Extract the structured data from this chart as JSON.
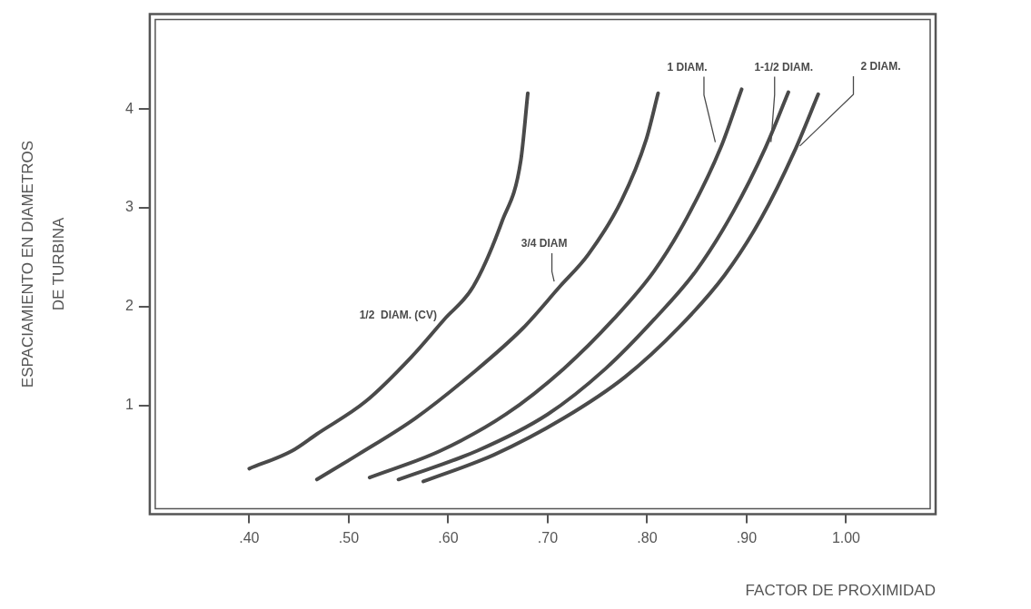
{
  "chart_data": {
    "type": "line",
    "xlabel": "FACTOR DE PROXIMIDAD",
    "ylabel": "ESPACIAMIENTO EN DIAMETROS\nDE TURBINA",
    "xlim": [
      0.3,
      1.09
    ],
    "ylim": [
      -0.1,
      4.96
    ],
    "xticks": [
      {
        "value": 0.4,
        "label": ".40"
      },
      {
        "value": 0.5,
        "label": ".50"
      },
      {
        "value": 0.6,
        "label": ".60"
      },
      {
        "value": 0.7,
        "label": ".70"
      },
      {
        "value": 0.8,
        "label": ".80"
      },
      {
        "value": 0.9,
        "label": ".90"
      },
      {
        "value": 1.0,
        "label": "1.00"
      }
    ],
    "yticks": [
      1,
      2,
      3,
      4
    ],
    "legend": false,
    "marker": "none",
    "line_style": "solid",
    "series": [
      {
        "name": "1/2  DIAM. (CV)",
        "color": "#4a4a4a",
        "x": [
          0.4,
          0.443,
          0.468,
          0.517,
          0.563,
          0.596,
          0.625,
          0.654,
          0.673,
          0.68
        ],
        "values": [
          0.36,
          0.54,
          0.71,
          1.04,
          1.49,
          1.87,
          2.2,
          2.86,
          3.48,
          4.16
        ]
      },
      {
        "name": "3/4 DIAM",
        "color": "#4a4a4a",
        "x": [
          0.468,
          0.509,
          0.567,
          0.625,
          0.675,
          0.712,
          0.741,
          0.774,
          0.799,
          0.811
        ],
        "values": [
          0.25,
          0.5,
          0.87,
          1.33,
          1.78,
          2.2,
          2.53,
          3.07,
          3.69,
          4.16
        ]
      },
      {
        "name": "1 DIAM.",
        "color": "#4a4a4a",
        "x": [
          0.521,
          0.592,
          0.658,
          0.716,
          0.766,
          0.807,
          0.84,
          0.874,
          0.895
        ],
        "values": [
          0.27,
          0.54,
          0.91,
          1.37,
          1.87,
          2.36,
          2.9,
          3.61,
          4.2
        ]
      },
      {
        "name": "1-1/2 DIAM.",
        "color": "#4a4a4a",
        "x": [
          0.55,
          0.629,
          0.7,
          0.758,
          0.807,
          0.849,
          0.886,
          0.919,
          0.942
        ],
        "values": [
          0.25,
          0.54,
          0.91,
          1.37,
          1.87,
          2.36,
          2.95,
          3.61,
          4.17
        ]
      },
      {
        "name": "2 DIAM.",
        "color": "#4a4a4a",
        "x": [
          0.575,
          0.646,
          0.716,
          0.778,
          0.832,
          0.878,
          0.915,
          0.948,
          0.972
        ],
        "values": [
          0.23,
          0.5,
          0.87,
          1.29,
          1.79,
          2.32,
          2.9,
          3.57,
          4.15
        ]
      }
    ]
  }
}
